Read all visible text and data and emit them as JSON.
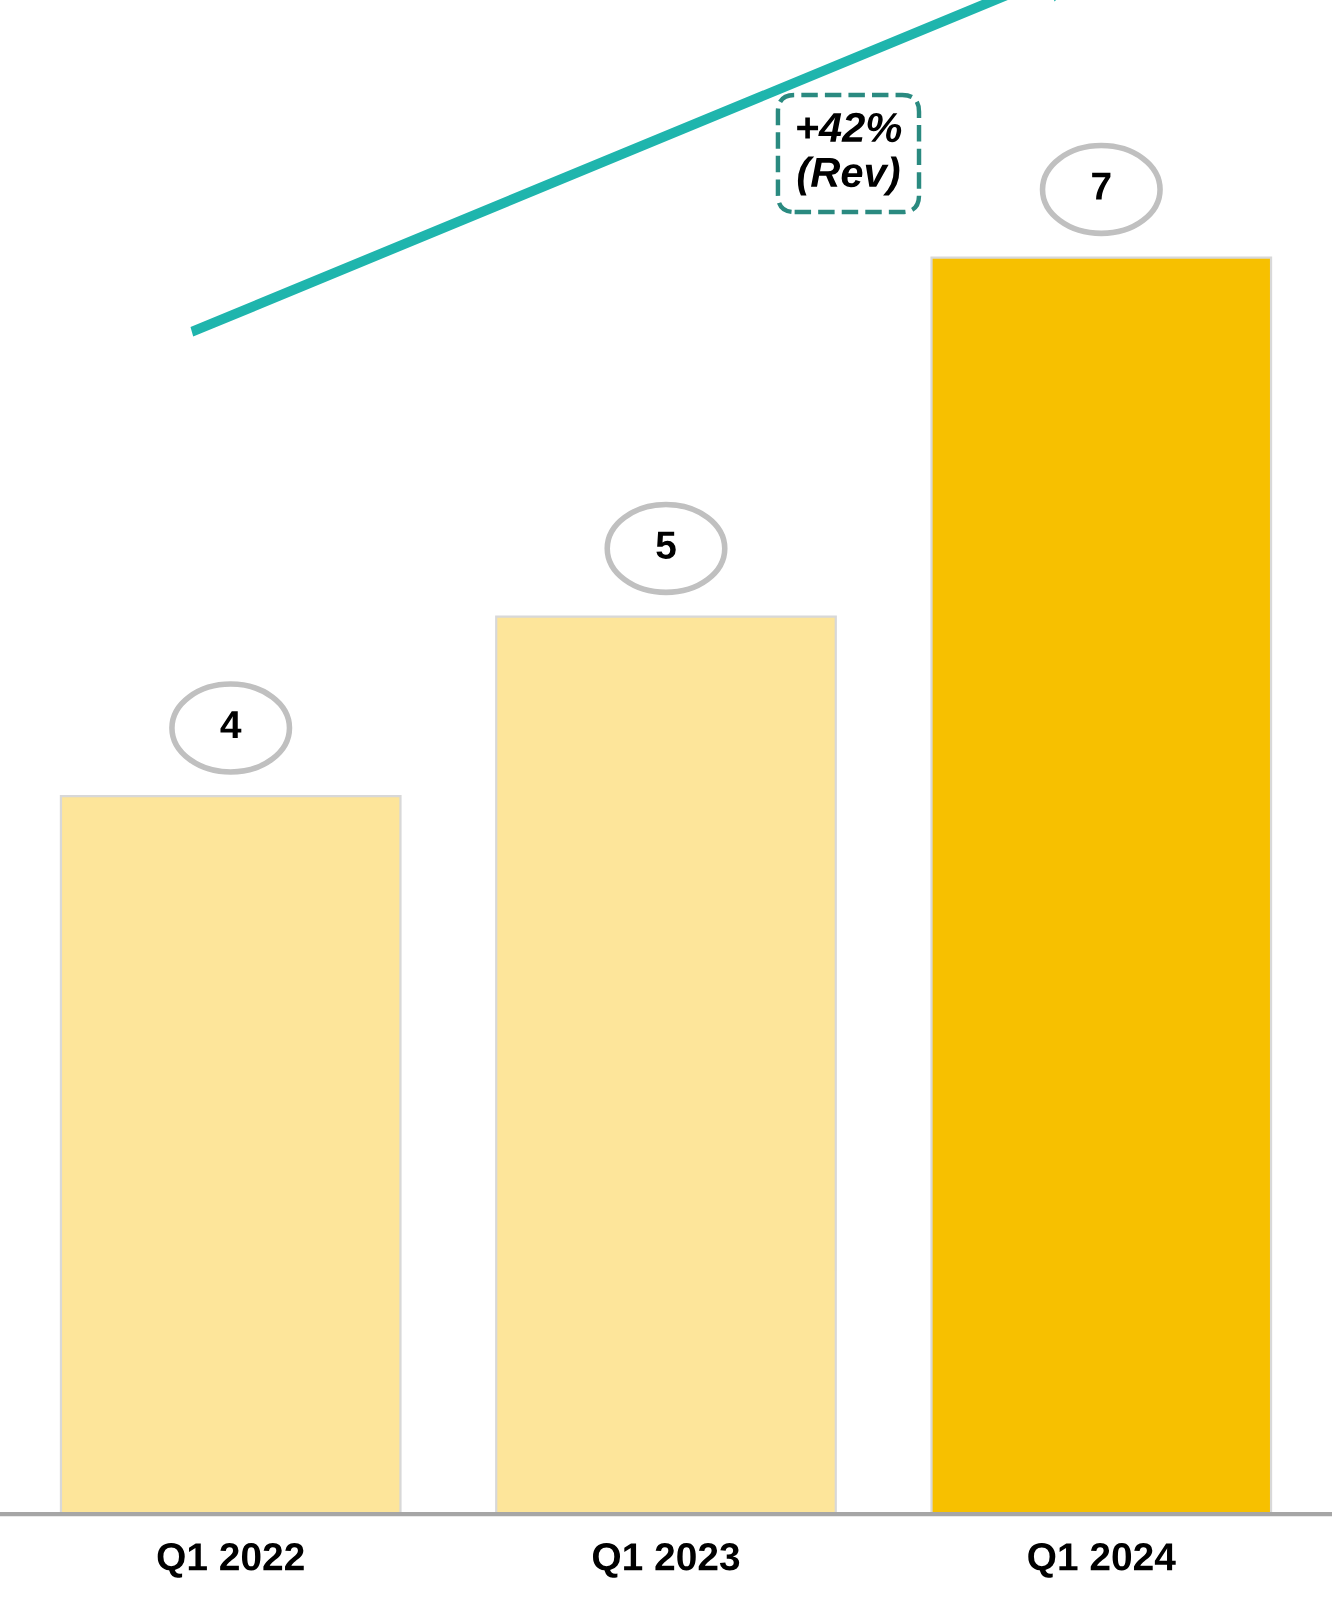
{
  "chart_data": {
    "type": "bar",
    "categories": [
      "Q1 2022",
      "Q1 2023",
      "Q1 2024"
    ],
    "values": [
      4,
      5,
      7
    ],
    "colors": [
      "#fde59a",
      "#fde59a",
      "#f7c000"
    ],
    "data_labels": true,
    "annotations": [
      "+42%\n(Rev)"
    ],
    "grid": false,
    "legend": false
  }
}
